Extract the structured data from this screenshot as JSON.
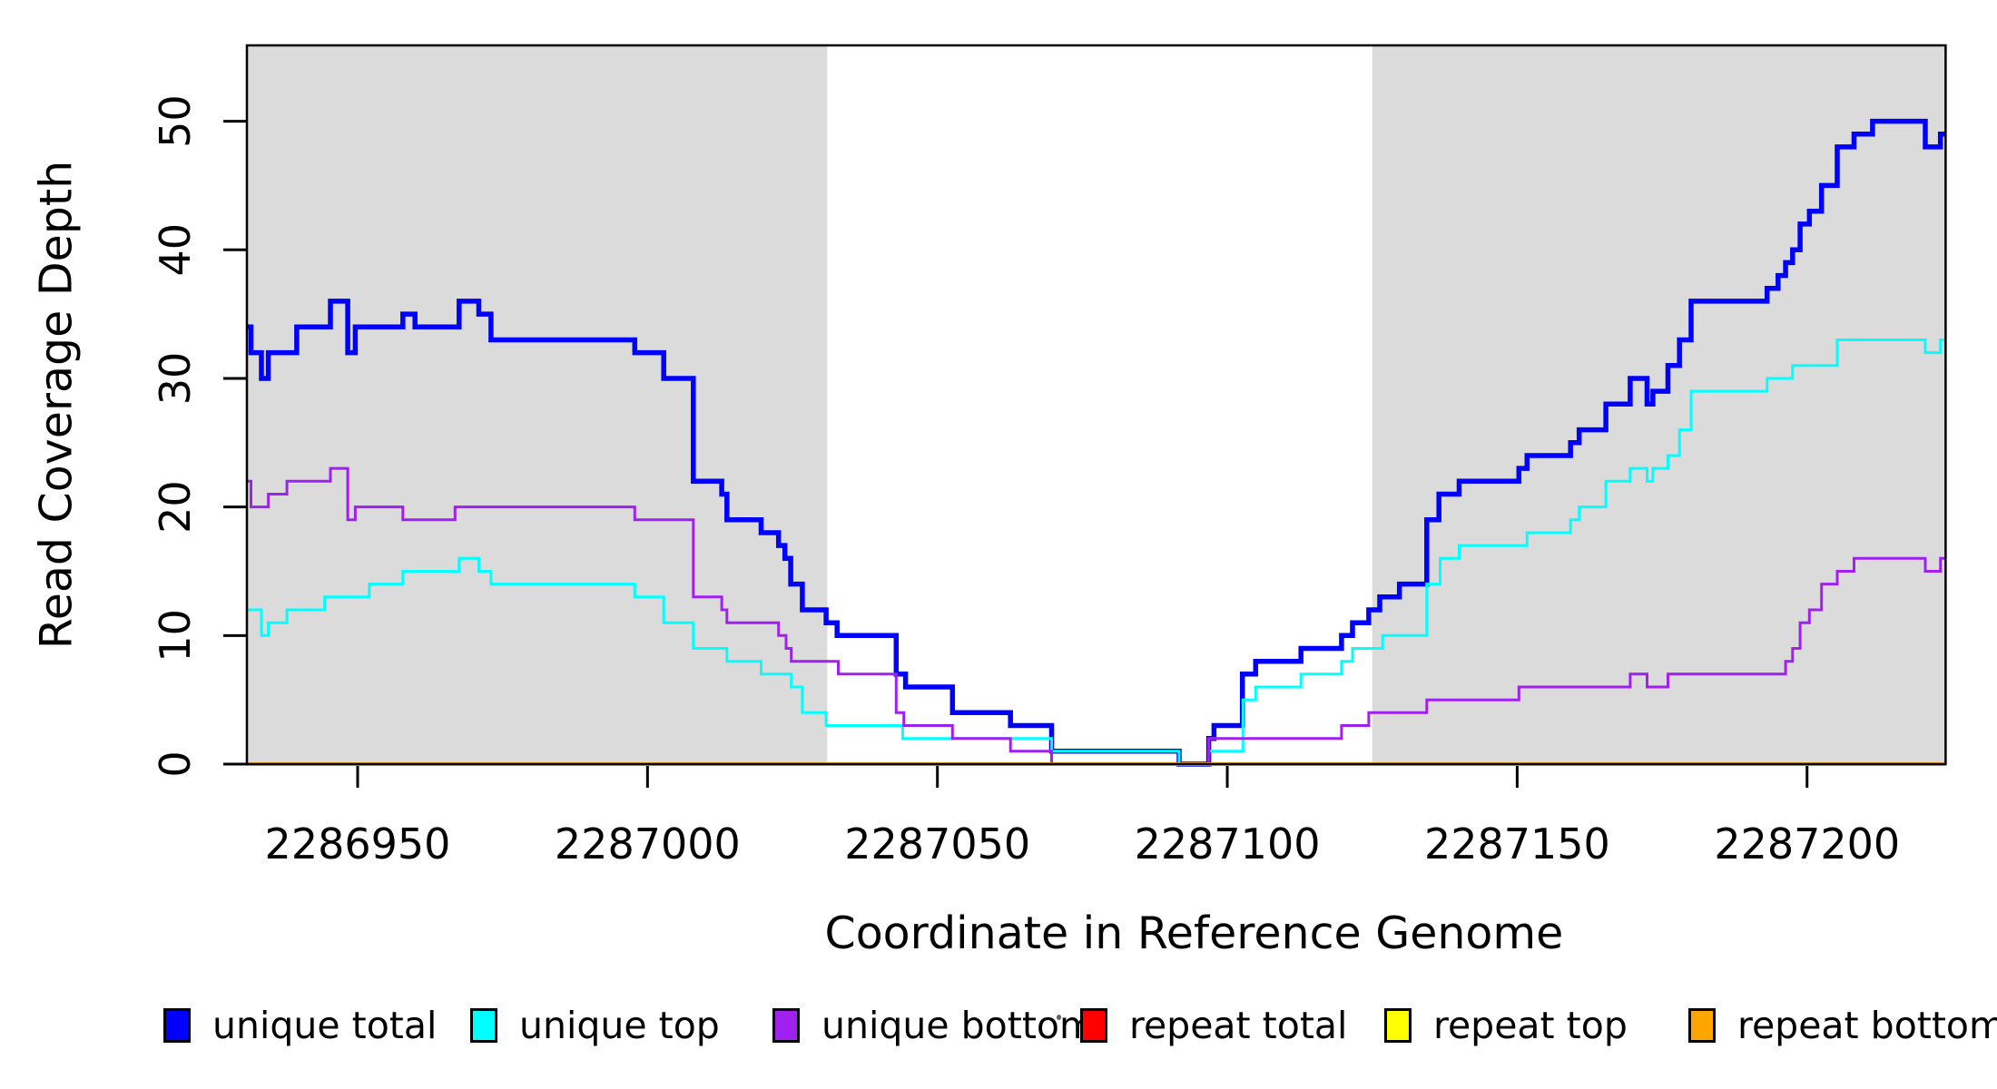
{
  "x_axis": {
    "label": "Coordinate in Reference Genome",
    "tick_labels": [
      "2286950",
      "2287000",
      "2287050",
      "2287100",
      "2287150",
      "2287200"
    ]
  },
  "y_axis": {
    "label": "Read Coverage Depth",
    "tick_labels": [
      "0",
      "10",
      "20",
      "30",
      "40",
      "50"
    ]
  },
  "legend": {
    "entries": [
      {
        "label": "unique total",
        "color": "#0000FF"
      },
      {
        "label": "unique top",
        "color": "#00FFFF"
      },
      {
        "label": "unique bottom",
        "color": "#A020F0"
      },
      {
        "label": "repeat total",
        "color": "#FF0000"
      },
      {
        "label": "repeat top",
        "color": "#FFFF00"
      },
      {
        "label": "repeat bottom",
        "color": "#FFA500"
      }
    ]
  },
  "chart_data": {
    "type": "line",
    "subtype": "step-after",
    "title": "",
    "xlabel": "Coordinate in Reference Genome",
    "ylabel": "Read Coverage Depth",
    "xlim": [
      2286930.9,
      2287223.9
    ],
    "ylim": [
      0,
      55.9
    ],
    "x_ticks": [
      2286950,
      2287000,
      2287050,
      2287100,
      2287150,
      2287200
    ],
    "y_ticks": [
      0,
      10,
      20,
      30,
      40,
      50
    ],
    "grid": false,
    "legend_position": "bottom",
    "plot_background": "#ffffff",
    "shaded_regions": [
      {
        "name": "left-repeat-flank",
        "x_from": 2286930.9,
        "x_to": 2287031.0,
        "color": "#DBDBDB"
      },
      {
        "name": "right-repeat-flank",
        "x_from": 2287125.0,
        "x_to": 2287223.9,
        "color": "#DBDBDB"
      }
    ],
    "series": [
      {
        "name": "unique total",
        "color": "#0000FF",
        "stroke_width": 5.5,
        "points": [
          [
            2286930.9,
            34
          ],
          [
            2286931.6,
            32
          ],
          [
            2286933.4,
            30
          ],
          [
            2286934.6,
            32
          ],
          [
            2286939.5,
            34
          ],
          [
            2286945.3,
            36
          ],
          [
            2286948.3,
            32
          ],
          [
            2286949.6,
            34
          ],
          [
            2286957.8,
            35
          ],
          [
            2286959.9,
            34
          ],
          [
            2286967.5,
            36
          ],
          [
            2286970.9,
            35
          ],
          [
            2286973.0,
            33
          ],
          [
            2286997.8,
            32
          ],
          [
            2287002.8,
            30
          ],
          [
            2287007.9,
            22
          ],
          [
            2287012.8,
            21
          ],
          [
            2287013.7,
            19
          ],
          [
            2287019.6,
            18
          ],
          [
            2287022.6,
            17
          ],
          [
            2287023.7,
            16
          ],
          [
            2287024.7,
            14
          ],
          [
            2287026.7,
            12
          ],
          [
            2287030.8,
            11
          ],
          [
            2287032.7,
            10
          ],
          [
            2287042.9,
            7
          ],
          [
            2287044.5,
            6
          ],
          [
            2287052.6,
            4
          ],
          [
            2287062.6,
            3
          ],
          [
            2287069.7,
            1
          ],
          [
            2287091.7,
            0
          ],
          [
            2287096.8,
            2
          ],
          [
            2287097.7,
            3
          ],
          [
            2287102.6,
            7
          ],
          [
            2287104.9,
            8
          ],
          [
            2287112.7,
            9
          ],
          [
            2287119.7,
            10
          ],
          [
            2287121.6,
            11
          ],
          [
            2287124.4,
            12
          ],
          [
            2287126.3,
            13
          ],
          [
            2287129.7,
            14
          ],
          [
            2287134.4,
            19
          ],
          [
            2287136.5,
            21
          ],
          [
            2287140.0,
            22
          ],
          [
            2287150.3,
            23
          ],
          [
            2287151.7,
            24
          ],
          [
            2287159.2,
            25
          ],
          [
            2287160.7,
            26
          ],
          [
            2287165.3,
            28
          ],
          [
            2287169.5,
            30
          ],
          [
            2287172.4,
            28
          ],
          [
            2287173.4,
            29
          ],
          [
            2287176.0,
            31
          ],
          [
            2287178.0,
            33
          ],
          [
            2287180.0,
            36
          ],
          [
            2287193.1,
            37
          ],
          [
            2287195.0,
            38
          ],
          [
            2287196.3,
            39
          ],
          [
            2287197.5,
            40
          ],
          [
            2287198.8,
            42
          ],
          [
            2287200.4,
            43
          ],
          [
            2287202.5,
            45
          ],
          [
            2287205.2,
            48
          ],
          [
            2287208.1,
            49
          ],
          [
            2287211.3,
            50
          ],
          [
            2287220.4,
            48
          ],
          [
            2287223.0,
            49
          ]
        ]
      },
      {
        "name": "unique top",
        "color": "#00FFFF",
        "stroke_width": 3,
        "points": [
          [
            2286930.9,
            12
          ],
          [
            2286933.4,
            10
          ],
          [
            2286934.6,
            11
          ],
          [
            2286937.8,
            12
          ],
          [
            2286944.3,
            13
          ],
          [
            2286952.0,
            14
          ],
          [
            2286957.8,
            15
          ],
          [
            2286967.5,
            16
          ],
          [
            2286970.9,
            15
          ],
          [
            2286973.0,
            14
          ],
          [
            2286997.8,
            13
          ],
          [
            2287002.8,
            11
          ],
          [
            2287007.9,
            9
          ],
          [
            2287013.7,
            8
          ],
          [
            2287019.6,
            7
          ],
          [
            2287024.8,
            6
          ],
          [
            2287026.7,
            4
          ],
          [
            2287030.8,
            3
          ],
          [
            2287044.0,
            2
          ],
          [
            2287069.7,
            1
          ],
          [
            2287091.7,
            0
          ],
          [
            2287096.8,
            1
          ],
          [
            2287102.7,
            5
          ],
          [
            2287104.9,
            6
          ],
          [
            2287112.7,
            7
          ],
          [
            2287119.7,
            8
          ],
          [
            2287121.6,
            9
          ],
          [
            2287126.8,
            10
          ],
          [
            2287134.4,
            14
          ],
          [
            2287136.7,
            16
          ],
          [
            2287140.0,
            17
          ],
          [
            2287151.7,
            18
          ],
          [
            2287159.2,
            19
          ],
          [
            2287160.7,
            20
          ],
          [
            2287165.3,
            22
          ],
          [
            2287169.5,
            23
          ],
          [
            2287172.4,
            22
          ],
          [
            2287173.4,
            23
          ],
          [
            2287176.0,
            24
          ],
          [
            2287178.0,
            26
          ],
          [
            2287180.0,
            29
          ],
          [
            2287193.1,
            30
          ],
          [
            2287197.5,
            31
          ],
          [
            2287205.2,
            33
          ],
          [
            2287220.4,
            32
          ],
          [
            2287223.0,
            33
          ]
        ]
      },
      {
        "name": "unique bottom",
        "color": "#A020F0",
        "stroke_width": 3,
        "points": [
          [
            2286930.9,
            22
          ],
          [
            2286931.6,
            20
          ],
          [
            2286934.6,
            21
          ],
          [
            2286937.8,
            22
          ],
          [
            2286945.3,
            23
          ],
          [
            2286948.3,
            19
          ],
          [
            2286949.6,
            20
          ],
          [
            2286957.8,
            19
          ],
          [
            2286966.8,
            20
          ],
          [
            2286997.8,
            19
          ],
          [
            2287007.9,
            13
          ],
          [
            2287012.8,
            12
          ],
          [
            2287013.7,
            11
          ],
          [
            2287022.6,
            10
          ],
          [
            2287023.9,
            9
          ],
          [
            2287024.8,
            8
          ],
          [
            2287032.9,
            7
          ],
          [
            2287042.9,
            4
          ],
          [
            2287044.2,
            3
          ],
          [
            2287052.6,
            2
          ],
          [
            2287062.6,
            1
          ],
          [
            2287069.7,
            0
          ],
          [
            2287096.8,
            2
          ],
          [
            2287119.7,
            3
          ],
          [
            2287124.4,
            4
          ],
          [
            2287134.4,
            5
          ],
          [
            2287150.3,
            6
          ],
          [
            2287169.5,
            7
          ],
          [
            2287172.4,
            6
          ],
          [
            2287176.0,
            7
          ],
          [
            2287196.3,
            8
          ],
          [
            2287197.5,
            9
          ],
          [
            2287198.8,
            11
          ],
          [
            2287200.4,
            12
          ],
          [
            2287202.5,
            14
          ],
          [
            2287205.2,
            15
          ],
          [
            2287208.1,
            16
          ],
          [
            2287220.4,
            15
          ],
          [
            2287223.0,
            16
          ]
        ]
      },
      {
        "name": "repeat total",
        "color": "#FF0000",
        "stroke_width": 3,
        "points": [
          [
            2286930.9,
            0
          ]
        ]
      },
      {
        "name": "repeat top",
        "color": "#FFFF00",
        "stroke_width": 3,
        "points": [
          [
            2286930.9,
            0
          ]
        ]
      },
      {
        "name": "repeat bottom",
        "color": "#FFA500",
        "stroke_width": 4,
        "points": [
          [
            2286930.9,
            0
          ]
        ]
      }
    ]
  }
}
